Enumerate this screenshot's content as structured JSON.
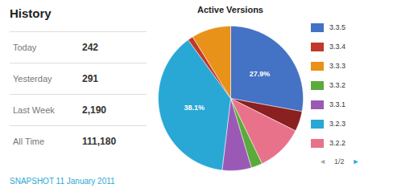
{
  "chart_data": {
    "type": "pie",
    "title": "Active Versions",
    "values": [
      27.9,
      4.5,
      10.5,
      2.5,
      6.5,
      38.1,
      1.2,
      8.8
    ],
    "colors": [
      "#4472C4",
      "#8B2020",
      "#E8728A",
      "#5AAA3C",
      "#9B59B6",
      "#29A8D5",
      "#C0392B",
      "#E8921A"
    ],
    "value_labels": [
      "27.9%",
      null,
      null,
      null,
      null,
      "38.1%",
      null,
      null
    ],
    "legend": "right",
    "legend_entries": [
      {
        "name": "3.3.5",
        "color": "#4472C4"
      },
      {
        "name": "3.3.4",
        "color": "#C0392B"
      },
      {
        "name": "3.3.3",
        "color": "#E8921A"
      },
      {
        "name": "3.3.2",
        "color": "#5AAA3C"
      },
      {
        "name": "3.3.1",
        "color": "#9B59B6"
      },
      {
        "name": "3.2.3",
        "color": "#29A8D5"
      },
      {
        "name": "3.2.2",
        "color": "#E8728A"
      }
    ],
    "page_nav": [
      "◄",
      "1/2",
      "►"
    ],
    "panel": {
      "title": "History",
      "rows": [
        {
          "label": "Today",
          "value": "242"
        },
        {
          "label": "Yesterday",
          "value": "291"
        },
        {
          "label": "Last Week",
          "value": "2,190"
        },
        {
          "label": "All Time",
          "value": "111,180"
        }
      ],
      "caption": "SNAPSHOT 11 January 2011"
    }
  }
}
